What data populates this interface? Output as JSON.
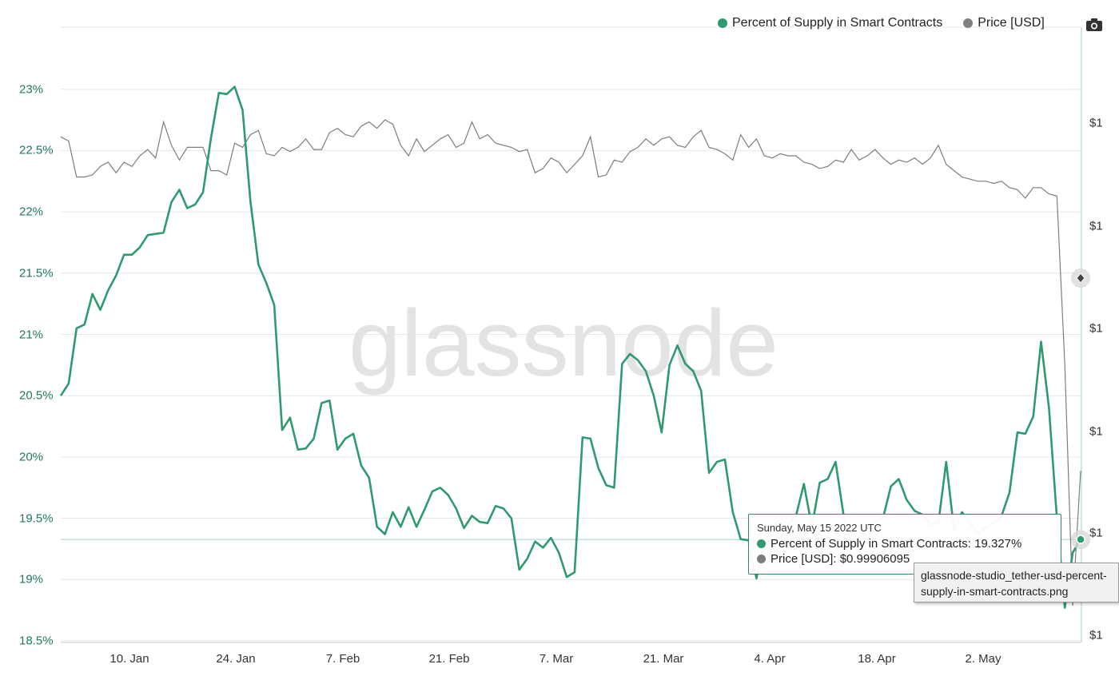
{
  "watermark": "glassnode",
  "legend": [
    {
      "label": "Percent of Supply in Smart Contracts",
      "color": "#2e9a6e"
    },
    {
      "label": "Price [USD]",
      "color": "#808080"
    }
  ],
  "camera_icon": "camera-icon",
  "tooltip": {
    "date": "Sunday, May 15 2022 UTC",
    "rows": [
      {
        "label": "Percent of Supply in Smart Contracts: ",
        "value": "19.327%",
        "color": "#2e9a6e"
      },
      {
        "label": "Price [USD]: ",
        "value": "$0.99906095",
        "color": "#7d7d7d"
      }
    ]
  },
  "file_tooltip": {
    "line1": "glassnode-studio_tether-usd-percent-",
    "line2": "supply-in-smart-contracts.png"
  },
  "chart_data": {
    "type": "line",
    "x_ticks": [
      "10. Jan",
      "24. Jan",
      "7. Feb",
      "21. Feb",
      "7. Mar",
      "21. Mar",
      "4. Apr",
      "18. Apr",
      "2. May"
    ],
    "y_left_ticks": [
      "23%",
      "22.5%",
      "22%",
      "21.5%",
      "21%",
      "20.5%",
      "20%",
      "19.5%",
      "19%",
      "18.5%"
    ],
    "y_right_ticks": [
      "$1",
      "$1",
      "$1",
      "$1",
      "$1",
      "$1"
    ],
    "ylim_left": [
      18.5,
      23.3
    ],
    "grid": true,
    "legend_position": "top-right",
    "series": [
      {
        "name": "Percent of Supply in Smart Contracts",
        "axis": "left",
        "color": "#2e9a6e",
        "x_start": "2022-01-03",
        "x_step_days": 1,
        "values": [
          20.5,
          20.6,
          21.05,
          21.08,
          21.33,
          21.2,
          21.36,
          21.48,
          21.65,
          21.65,
          21.71,
          21.81,
          21.82,
          21.83,
          22.08,
          22.18,
          22.03,
          22.06,
          22.16,
          22.6,
          22.97,
          22.96,
          23.02,
          22.83,
          22.08,
          21.57,
          21.42,
          21.24,
          20.22,
          20.32,
          20.06,
          20.07,
          20.15,
          20.44,
          20.46,
          20.06,
          20.15,
          20.19,
          19.93,
          19.83,
          19.43,
          19.37,
          19.55,
          19.43,
          19.59,
          19.43,
          19.57,
          19.72,
          19.75,
          19.69,
          19.58,
          19.42,
          19.52,
          19.47,
          19.46,
          19.6,
          19.58,
          19.5,
          19.08,
          19.17,
          19.31,
          19.26,
          19.34,
          19.22,
          19.02,
          19.06,
          20.16,
          20.15,
          19.91,
          19.77,
          19.75,
          20.76,
          20.84,
          20.79,
          20.7,
          20.5,
          20.2,
          20.75,
          20.91,
          20.76,
          20.7,
          20.54,
          19.87,
          19.96,
          19.98,
          19.55,
          19.33,
          19.32,
          19.01,
          19.29,
          19.33,
          19.34,
          19.45,
          19.52,
          19.78,
          19.43,
          19.79,
          19.82,
          19.96,
          19.53,
          19.28,
          19.35,
          19.41,
          19.47,
          19.5,
          19.76,
          19.82,
          19.65,
          19.56,
          19.53,
          19.45,
          19.46,
          19.96,
          19.4,
          19.55,
          19.46,
          19.37,
          19.42,
          19.46,
          19.52,
          19.71,
          20.2,
          20.19,
          20.33,
          20.94,
          20.4,
          19.5,
          18.77,
          19.22,
          19.327
        ]
      },
      {
        "name": "Price [USD]",
        "axis": "right",
        "color": "#7d7d7d",
        "x_start": "2022-01-03",
        "x_step_days": 1,
        "values": [
          1.00048,
          1.00046,
          1.00029,
          1.00029,
          1.0003,
          1.00034,
          1.00036,
          1.00031,
          1.00036,
          1.00034,
          1.00039,
          1.00042,
          1.00038,
          1.00055,
          1.00044,
          1.00037,
          1.00043,
          1.00043,
          1.00043,
          1.00032,
          1.00032,
          1.0003,
          1.00045,
          1.00043,
          1.00049,
          1.00051,
          1.0004,
          1.00039,
          1.00043,
          1.00041,
          1.00043,
          1.00047,
          1.00042,
          1.00042,
          1.0005,
          1.00052,
          1.00049,
          1.00048,
          1.00053,
          1.00055,
          1.00052,
          1.00056,
          1.00054,
          1.00044,
          1.00039,
          1.00047,
          1.00041,
          1.00044,
          1.00047,
          1.00049,
          1.00043,
          1.00045,
          1.00055,
          1.00047,
          1.00049,
          1.00045,
          1.00044,
          1.00043,
          1.00041,
          1.00042,
          1.00031,
          1.00033,
          1.00038,
          1.00036,
          1.00031,
          1.00035,
          1.00039,
          1.00048,
          1.00029,
          1.0003,
          1.00037,
          1.00036,
          1.00041,
          1.00043,
          1.00047,
          1.00044,
          1.00047,
          1.00048,
          1.00044,
          1.00043,
          1.00048,
          1.00051,
          1.00043,
          1.00042,
          1.0004,
          1.00037,
          1.00049,
          1.00043,
          1.00047,
          1.00039,
          1.00038,
          1.0004,
          1.00039,
          1.00039,
          1.00036,
          1.00035,
          1.00033,
          1.00034,
          1.00037,
          1.00036,
          1.00042,
          1.00037,
          1.00039,
          1.00042,
          1.00038,
          1.00035,
          1.00037,
          1.00036,
          1.00038,
          1.00035,
          1.00038,
          1.00044,
          1.00035,
          1.00032,
          1.00029,
          1.00028,
          1.00027,
          1.00027,
          1.00026,
          1.00027,
          1.00024,
          1.00023,
          1.00019,
          1.00024,
          1.00024,
          1.00021,
          1.0002,
          0.9995,
          0.9985,
          0.99906
        ]
      }
    ]
  }
}
